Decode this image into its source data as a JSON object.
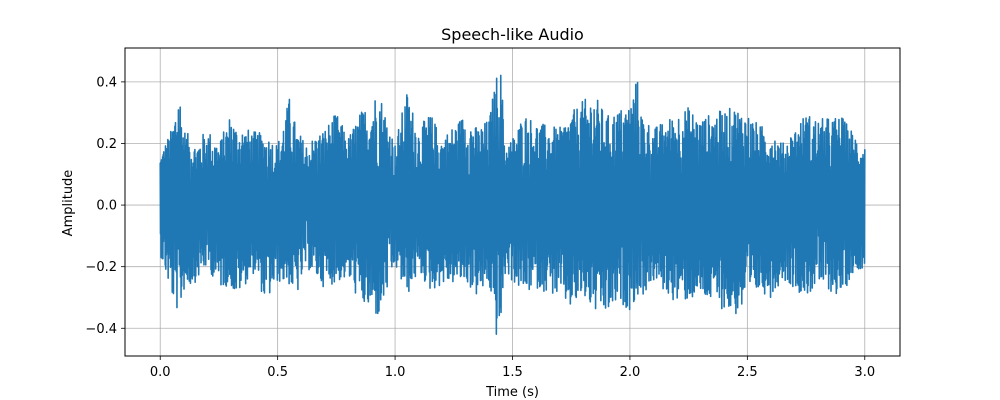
{
  "chart_data": {
    "type": "line",
    "title": "Speech-like Audio",
    "xlabel": "Time (s)",
    "ylabel": "Amplitude",
    "xlim": [
      -0.15,
      3.15
    ],
    "ylim": [
      -0.49,
      0.51
    ],
    "grid": true,
    "x_ticks": [
      0.0,
      0.5,
      1.0,
      1.5,
      2.0,
      2.5,
      3.0
    ],
    "x_tick_labels": [
      "0.0",
      "0.5",
      "1.0",
      "1.5",
      "2.0",
      "2.5",
      "3.0"
    ],
    "y_ticks": [
      -0.4,
      -0.2,
      0.0,
      0.2,
      0.4
    ],
    "y_tick_labels": [
      "−0.4",
      "−0.2",
      "0.0",
      "0.2",
      "0.4"
    ],
    "series": [
      {
        "color": "#1f77b4",
        "x": [
          0.0,
          0.05,
          0.08,
          0.1,
          0.15,
          0.2,
          0.25,
          0.3,
          0.32,
          0.4,
          0.45,
          0.5,
          0.55,
          0.58,
          0.62,
          0.7,
          0.75,
          0.8,
          0.85,
          0.9,
          0.93,
          1.0,
          1.05,
          1.1,
          1.15,
          1.2,
          1.3,
          1.35,
          1.4,
          1.43,
          1.45,
          1.47,
          1.5,
          1.55,
          1.6,
          1.7,
          1.75,
          1.8,
          1.85,
          1.9,
          1.95,
          2.0,
          2.03,
          2.05,
          2.1,
          2.2,
          2.25,
          2.3,
          2.35,
          2.45,
          2.5,
          2.55,
          2.6,
          2.65,
          2.75,
          2.8,
          2.9,
          2.95,
          3.0
        ],
        "y_max": [
          0.17,
          0.25,
          0.39,
          0.25,
          0.2,
          0.25,
          0.2,
          0.3,
          0.26,
          0.24,
          0.23,
          0.2,
          0.35,
          0.25,
          0.2,
          0.25,
          0.3,
          0.22,
          0.3,
          0.34,
          0.38,
          0.2,
          0.37,
          0.25,
          0.3,
          0.22,
          0.3,
          0.25,
          0.28,
          0.42,
          0.44,
          0.2,
          0.22,
          0.3,
          0.27,
          0.25,
          0.3,
          0.34,
          0.36,
          0.29,
          0.31,
          0.33,
          0.42,
          0.3,
          0.25,
          0.3,
          0.32,
          0.28,
          0.3,
          0.32,
          0.3,
          0.26,
          0.25,
          0.2,
          0.3,
          0.28,
          0.29,
          0.24,
          0.2
        ],
        "y_min": [
          -0.16,
          -0.3,
          -0.36,
          -0.28,
          -0.25,
          -0.2,
          -0.27,
          -0.26,
          -0.3,
          -0.22,
          -0.32,
          -0.25,
          -0.26,
          -0.3,
          -0.2,
          -0.27,
          -0.25,
          -0.24,
          -0.32,
          -0.35,
          -0.37,
          -0.2,
          -0.3,
          -0.22,
          -0.28,
          -0.26,
          -0.25,
          -0.3,
          -0.26,
          -0.43,
          -0.4,
          -0.22,
          -0.25,
          -0.29,
          -0.27,
          -0.3,
          -0.34,
          -0.3,
          -0.35,
          -0.36,
          -0.32,
          -0.34,
          -0.3,
          -0.3,
          -0.25,
          -0.32,
          -0.31,
          -0.3,
          -0.32,
          -0.36,
          -0.33,
          -0.28,
          -0.3,
          -0.24,
          -0.3,
          -0.26,
          -0.3,
          -0.22,
          -0.2
        ]
      }
    ]
  }
}
